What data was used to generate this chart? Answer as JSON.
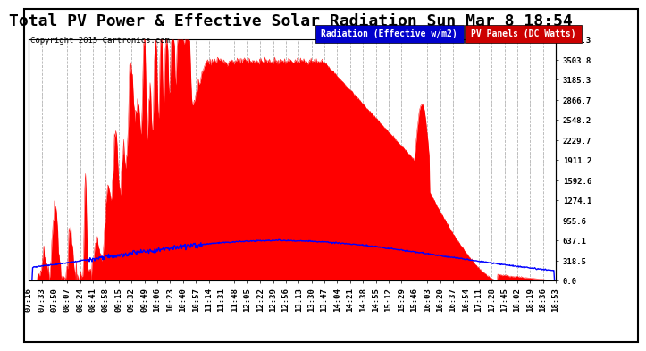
{
  "title": "Total PV Power & Effective Solar Radiation Sun Mar 8 18:54",
  "copyright_text": "Copyright 2015 Cartronics.com",
  "legend_radiation": "Radiation (Effective w/m2)",
  "legend_pv": "PV Panels (DC Watts)",
  "ymax": 3822.3,
  "ymin": 0.0,
  "yticks": [
    0.0,
    318.5,
    637.1,
    955.6,
    1274.1,
    1592.6,
    1911.2,
    2229.7,
    2548.2,
    2866.7,
    3185.3,
    3503.8,
    3822.3
  ],
  "bg_color": "#ffffff",
  "plot_bg_color": "#ffffff",
  "grid_color": "#aaaaaa",
  "radiation_color": "#0000ff",
  "pv_color": "#ff0000",
  "x_labels": [
    "07:16",
    "07:33",
    "07:50",
    "08:07",
    "08:24",
    "08:41",
    "08:58",
    "09:15",
    "09:32",
    "09:49",
    "10:06",
    "10:23",
    "10:40",
    "10:57",
    "11:14",
    "11:31",
    "11:48",
    "12:05",
    "12:22",
    "12:39",
    "12:56",
    "13:13",
    "13:30",
    "13:47",
    "14:04",
    "14:21",
    "14:38",
    "14:55",
    "15:12",
    "15:29",
    "15:46",
    "16:03",
    "16:20",
    "16:37",
    "16:54",
    "17:11",
    "17:28",
    "17:45",
    "18:02",
    "18:19",
    "18:36",
    "18:53"
  ],
  "num_points": 800,
  "title_fontsize": 13,
  "tick_fontsize": 6.5,
  "border_color": "#000000"
}
